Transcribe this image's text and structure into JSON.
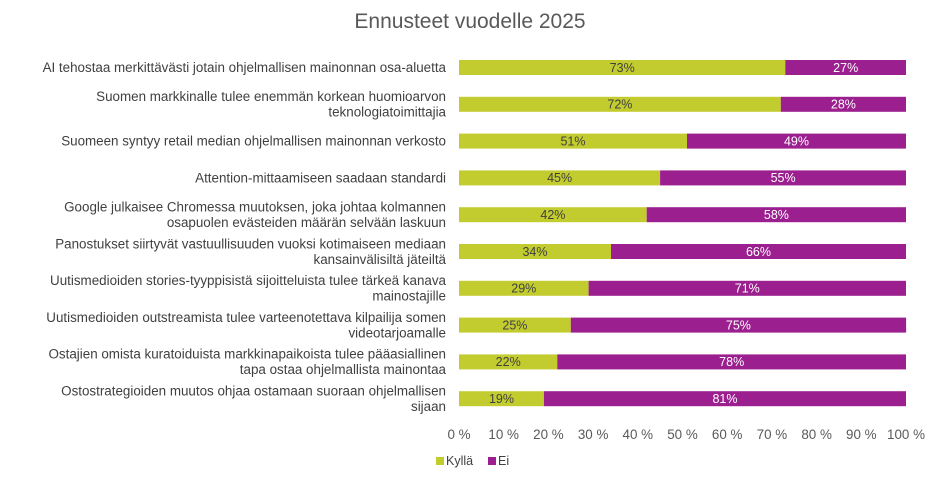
{
  "chart_data": {
    "type": "bar",
    "orientation": "horizontal",
    "stacked": true,
    "percent_stacked": true,
    "title": "Ennusteet vuodelle 2025",
    "categories": [
      "AI tehostaa merkittävästi jotain ohjelmallisen mainonnan osa-aluetta",
      "Suomen markkinalle tulee enemmän korkean huomioarvon teknologiatoimittajia",
      "Suomeen syntyy retail median ohjelmallisen mainonnan verkosto",
      "Attention-mittaamiseen saadaan standardi",
      "Google julkaisee Chromessa muutoksen, joka johtaa kolmannen osapuolen evästeiden määrän selvään laskuun",
      "Panostukset siirtyvät vastuullisuuden vuoksi kotimaiseen mediaan kansainvälisiltä jäteiltä",
      "Uutismedioiden stories-tyyppisistä sijoitteluista tulee tärkeä kanava mainostajille",
      "Uutismedioiden outstreamista tulee varteenotettava kilpailija somen videotarjoamalle",
      "Ostajien omista kuratoiduista markkinapaikoista tulee pääasiallinen tapa ostaa ohjelmallista mainontaa",
      "Ostostrategioiden muutos ohjaa ostamaan suoraan ohjelmallisen sijaan"
    ],
    "category_lines": [
      [
        "AI tehostaa merkittävästi jotain ohjelmallisen mainonnan osa-aluetta"
      ],
      [
        "Suomen markkinalle tulee enemmän korkean huomioarvon",
        "teknologiatoimittajia"
      ],
      [
        "Suomeen syntyy retail median ohjelmallisen mainonnan verkosto"
      ],
      [
        "Attention-mittaamiseen saadaan standardi"
      ],
      [
        "Google julkaisee Chromessa muutoksen, joka johtaa kolmannen",
        "osapuolen evästeiden määrän selvään laskuun"
      ],
      [
        "Panostukset siirtyvät vastuullisuuden vuoksi kotimaiseen mediaan",
        "kansainvälisiltä jäteiltä"
      ],
      [
        "Uutismedioiden stories-tyyppisistä sijoitteluista tulee tärkeä kanava",
        "mainostajille"
      ],
      [
        "Uutismedioiden outstreamista tulee varteenotettava kilpailija somen",
        "videotarjoamalle"
      ],
      [
        "Ostajien omista kuratoiduista markkinapaikoista tulee pääasiallinen",
        "tapa ostaa ohjelmallista mainontaa"
      ],
      [
        "Ostostrategioiden muutos ohjaa ostamaan suoraan ohjelmallisen",
        "sijaan"
      ]
    ],
    "series": [
      {
        "name": "Kyllä",
        "color": "#c3cc2f",
        "values": [
          73,
          72,
          51,
          45,
          42,
          34,
          29,
          25,
          22,
          19
        ],
        "labels": [
          "73%",
          "72%",
          "51%",
          "45%",
          "42%",
          "34%",
          "29%",
          "25%",
          "22%",
          "19%"
        ]
      },
      {
        "name": "Ei",
        "color": "#9b1f8f",
        "values": [
          27,
          28,
          49,
          55,
          58,
          66,
          71,
          75,
          78,
          81
        ],
        "labels": [
          "27%",
          "28%",
          "49%",
          "55%",
          "58%",
          "66%",
          "71%",
          "75%",
          "78%",
          "81%"
        ]
      }
    ],
    "xlim": [
      0,
      100
    ],
    "x_ticks": [
      0,
      10,
      20,
      30,
      40,
      50,
      60,
      70,
      80,
      90,
      100
    ],
    "x_tick_labels": [
      "0 %",
      "10 %",
      "20 %",
      "30 %",
      "40 %",
      "50 %",
      "60 %",
      "70 %",
      "80 %",
      "90 %",
      "100 %"
    ],
    "grid": false,
    "legend": {
      "position": "bottom-left",
      "entries": [
        "Kyllä",
        "Ei"
      ]
    }
  }
}
